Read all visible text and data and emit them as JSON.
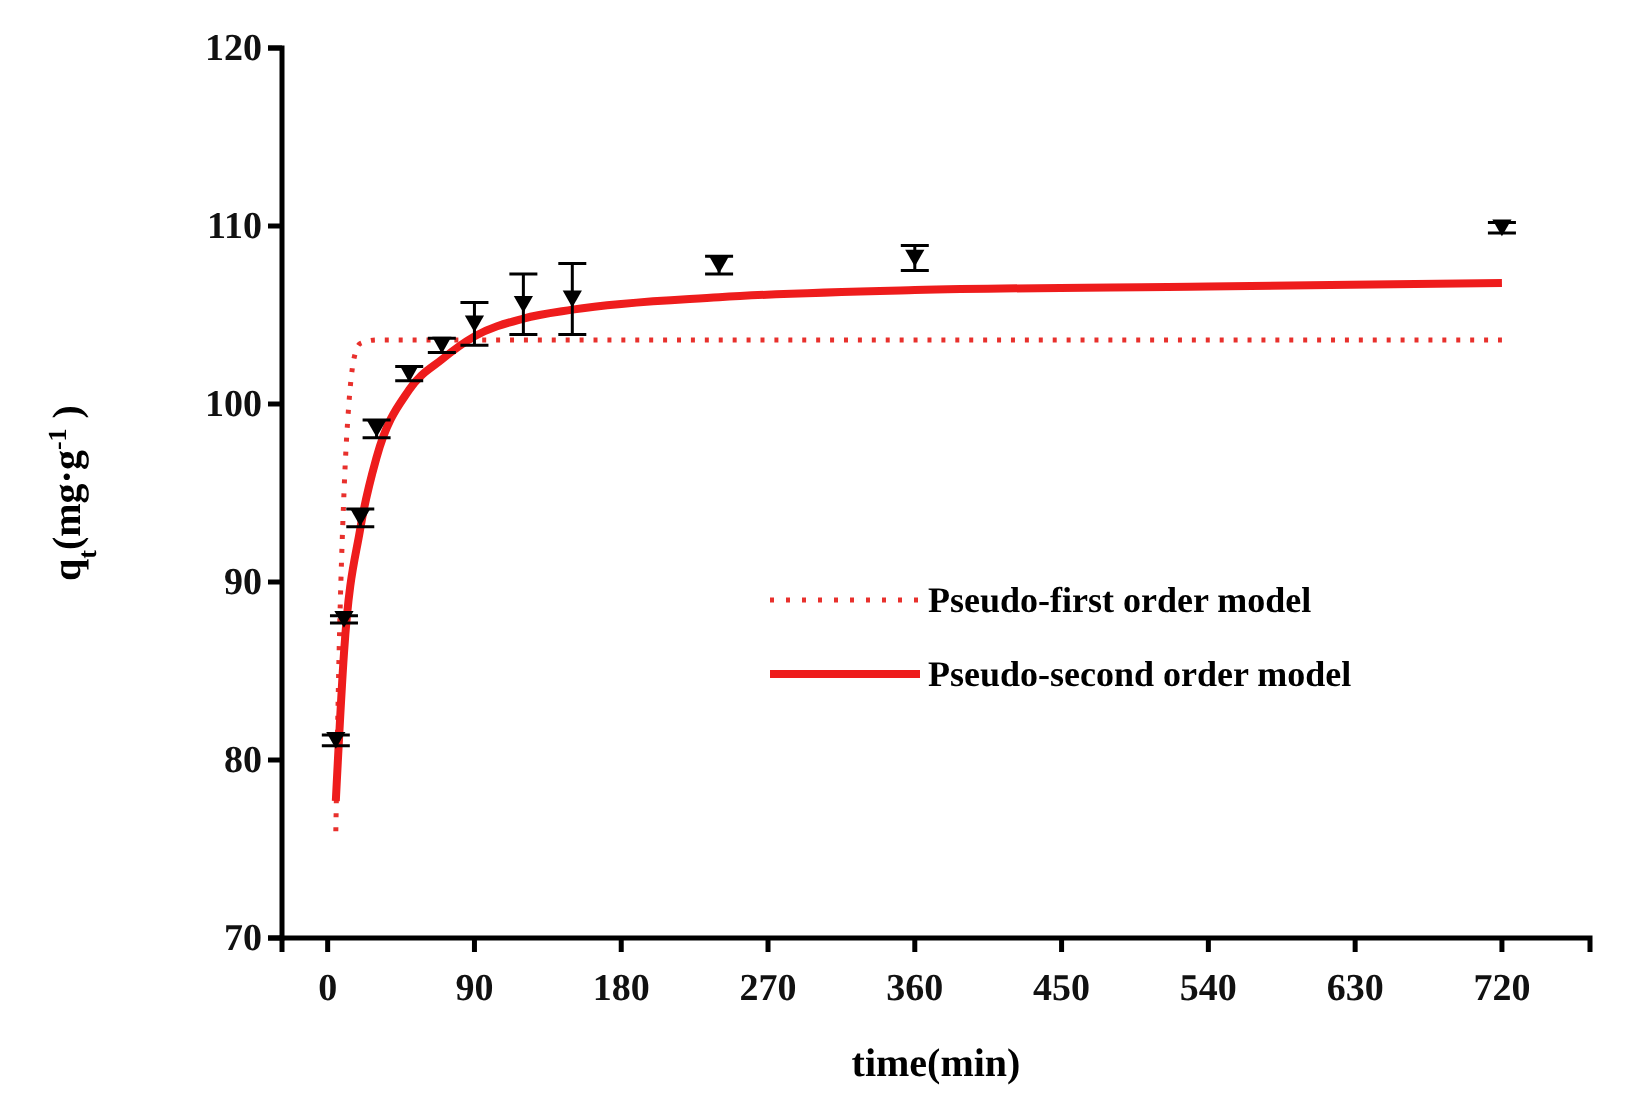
{
  "chart_data": {
    "type": "line",
    "xlabel": "time(min)",
    "ylabel": "q$_{t}$(mg·g$^{-1}$ )",
    "xlim": [
      -28,
      774
    ],
    "ylim": [
      70,
      120
    ],
    "xticks": [
      0,
      90,
      180,
      270,
      360,
      450,
      540,
      630,
      720
    ],
    "yticks": [
      70,
      80,
      90,
      100,
      110,
      120
    ],
    "grid": false,
    "legend": "right",
    "series": [
      {
        "type": "scatter",
        "color": "#000000",
        "marker": "triangle",
        "x": [
          5,
          10,
          20,
          30,
          50,
          70,
          90,
          120,
          150,
          240,
          360,
          720
        ],
        "values": [
          81.1,
          87.9,
          93.6,
          98.6,
          101.7,
          103.3,
          104.5,
          105.6,
          105.9,
          107.8,
          108.2,
          109.9
        ],
        "errors": [
          0.3,
          0.2,
          0.5,
          0.5,
          0.4,
          0.4,
          1.2,
          1.7,
          2,
          0.5,
          0.7,
          0.3
        ]
      },
      {
        "type": "line",
        "name": "Pseudo-first order model",
        "color": "#e8302c",
        "line_style": "dotted",
        "x": [
          5,
          7,
          10,
          13,
          16,
          20,
          30,
          90,
          720
        ],
        "values": [
          76,
          86,
          95,
          100,
          102.5,
          103.4,
          103.6,
          103.6,
          103.6
        ]
      },
      {
        "type": "line",
        "name": "Pseudo-second order model",
        "color": "#ee1c1c",
        "line_style": "solid",
        "x": [
          5,
          10,
          20,
          30,
          50,
          70,
          90,
          120,
          150,
          240,
          360,
          540,
          720
        ],
        "values": [
          77.7,
          86,
          93,
          97,
          100.8,
          102.5,
          103.8,
          104.8,
          105.3,
          106,
          106.4,
          106.6,
          106.8
        ]
      }
    ]
  }
}
